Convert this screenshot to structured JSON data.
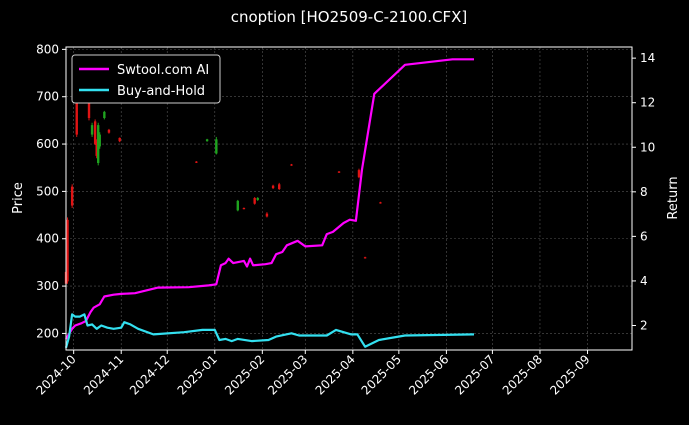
{
  "chart_data": {
    "type": "line",
    "title": "cnoption [HO2509-C-2100.CFX]",
    "ylabel_left": "Price",
    "ylabel_right": "Return",
    "ylim_left": [
      165,
      805
    ],
    "ylim_right": [
      0.9,
      14.5
    ],
    "yticks_left": [
      200,
      300,
      400,
      500,
      600,
      700,
      800
    ],
    "yticks_right": [
      2,
      4,
      6,
      8,
      10,
      12,
      14
    ],
    "xlim": [
      "2024-09-26",
      "2025-09-30"
    ],
    "xticks": [
      {
        "date": "2024-10-01",
        "label": "2024-10"
      },
      {
        "date": "2024-11-01",
        "label": "2024-11"
      },
      {
        "date": "2024-12-01",
        "label": "2024-12"
      },
      {
        "date": "2025-01-01",
        "label": "2025-01"
      },
      {
        "date": "2025-02-01",
        "label": "2025-02"
      },
      {
        "date": "2025-03-01",
        "label": "2025-03"
      },
      {
        "date": "2025-04-01",
        "label": "2025-04"
      },
      {
        "date": "2025-05-01",
        "label": "2025-05"
      },
      {
        "date": "2025-06-01",
        "label": "2025-06"
      },
      {
        "date": "2025-07-01",
        "label": "2025-07"
      },
      {
        "date": "2025-08-01",
        "label": "2025-08"
      },
      {
        "date": "2025-09-01",
        "label": "2025-09"
      }
    ],
    "grid": true,
    "legend_position": "top-left",
    "colors": {
      "up": "#1fa31f",
      "down": "#e01414",
      "grid": "#555555",
      "axis": "#ffffff"
    },
    "series": [
      {
        "name": "Swtool.com AI",
        "axis": "right",
        "color": "#ff00ff",
        "points": [
          [
            "2024-09-26",
            1.4
          ],
          [
            "2024-09-30",
            1.85
          ],
          [
            "2024-10-02",
            2.0
          ],
          [
            "2024-10-06",
            2.1
          ],
          [
            "2024-10-09",
            2.2
          ],
          [
            "2024-10-12",
            2.6
          ],
          [
            "2024-10-14",
            2.8
          ],
          [
            "2024-10-18",
            2.95
          ],
          [
            "2024-10-21",
            3.3
          ],
          [
            "2024-10-27",
            3.38
          ],
          [
            "2024-11-01",
            3.42
          ],
          [
            "2024-11-10",
            3.45
          ],
          [
            "2024-11-25",
            3.7
          ],
          [
            "2024-12-15",
            3.72
          ],
          [
            "2024-12-28",
            3.8
          ],
          [
            "2025-01-02",
            3.85
          ],
          [
            "2025-01-05",
            4.7
          ],
          [
            "2025-01-08",
            4.8
          ],
          [
            "2025-01-10",
            5.0
          ],
          [
            "2025-01-13",
            4.8
          ],
          [
            "2025-01-20",
            4.9
          ],
          [
            "2025-01-22",
            4.65
          ],
          [
            "2025-01-24",
            5.0
          ],
          [
            "2025-01-26",
            4.7
          ],
          [
            "2025-02-03",
            4.75
          ],
          [
            "2025-02-07",
            4.8
          ],
          [
            "2025-02-10",
            5.2
          ],
          [
            "2025-02-14",
            5.3
          ],
          [
            "2025-02-17",
            5.6
          ],
          [
            "2025-02-24",
            5.8
          ],
          [
            "2025-03-01",
            5.55
          ],
          [
            "2025-03-12",
            5.6
          ],
          [
            "2025-03-15",
            6.1
          ],
          [
            "2025-03-19",
            6.2
          ],
          [
            "2025-03-26",
            6.6
          ],
          [
            "2025-03-30",
            6.75
          ],
          [
            "2025-04-03",
            6.7
          ],
          [
            "2025-04-07",
            9.0
          ],
          [
            "2025-04-15",
            12.4
          ],
          [
            "2025-05-05",
            13.7
          ],
          [
            "2025-06-05",
            13.95
          ],
          [
            "2025-06-19",
            13.95
          ]
        ]
      },
      {
        "name": "Buy-and-Hold",
        "axis": "right",
        "color": "#33e0f0",
        "points": [
          [
            "2024-09-26",
            1.0
          ],
          [
            "2024-09-28",
            1.5
          ],
          [
            "2024-09-30",
            2.5
          ],
          [
            "2024-10-02",
            2.4
          ],
          [
            "2024-10-05",
            2.4
          ],
          [
            "2024-10-08",
            2.5
          ],
          [
            "2024-10-10",
            2.0
          ],
          [
            "2024-10-13",
            2.05
          ],
          [
            "2024-10-16",
            1.85
          ],
          [
            "2024-10-19",
            2.0
          ],
          [
            "2024-10-23",
            1.9
          ],
          [
            "2024-10-27",
            1.85
          ],
          [
            "2024-11-01",
            1.9
          ],
          [
            "2024-11-03",
            2.15
          ],
          [
            "2024-11-07",
            2.05
          ],
          [
            "2024-11-12",
            1.85
          ],
          [
            "2024-11-22",
            1.6
          ],
          [
            "2024-12-12",
            1.7
          ],
          [
            "2024-12-24",
            1.8
          ],
          [
            "2025-01-01",
            1.8
          ],
          [
            "2025-01-04",
            1.35
          ],
          [
            "2025-01-08",
            1.4
          ],
          [
            "2025-01-12",
            1.3
          ],
          [
            "2025-01-16",
            1.4
          ],
          [
            "2025-01-25",
            1.3
          ],
          [
            "2025-02-05",
            1.35
          ],
          [
            "2025-02-10",
            1.5
          ],
          [
            "2025-02-20",
            1.65
          ],
          [
            "2025-02-25",
            1.55
          ],
          [
            "2025-03-15",
            1.55
          ],
          [
            "2025-03-21",
            1.8
          ],
          [
            "2025-03-31",
            1.6
          ],
          [
            "2025-04-04",
            1.6
          ],
          [
            "2025-04-09",
            1.05
          ],
          [
            "2025-04-18",
            1.35
          ],
          [
            "2025-05-05",
            1.55
          ],
          [
            "2025-06-19",
            1.6
          ]
        ]
      }
    ],
    "candles": [
      {
        "date": "2024-09-26",
        "open": 330,
        "close": 305,
        "high": 340,
        "low": 300
      },
      {
        "date": "2024-09-27",
        "open": 440,
        "close": 310,
        "high": 445,
        "low": 305
      },
      {
        "date": "2024-09-30",
        "open": 510,
        "close": 470,
        "high": 515,
        "low": 465
      },
      {
        "date": "2024-10-03",
        "open": 720,
        "close": 620,
        "high": 735,
        "low": 615
      },
      {
        "date": "2024-10-08",
        "open": 712,
        "close": 706,
        "high": 715,
        "low": 703
      },
      {
        "date": "2024-10-09",
        "open": 740,
        "close": 730,
        "high": 745,
        "low": 725
      },
      {
        "date": "2024-10-11",
        "open": 690,
        "close": 655,
        "high": 695,
        "low": 650
      },
      {
        "date": "2024-10-13",
        "open": 620,
        "close": 640,
        "high": 645,
        "low": 615
      },
      {
        "date": "2024-10-15",
        "open": 648,
        "close": 600,
        "high": 652,
        "low": 598
      },
      {
        "date": "2024-10-16",
        "open": 605,
        "close": 575,
        "high": 610,
        "low": 570
      },
      {
        "date": "2024-10-17",
        "open": 560,
        "close": 640,
        "high": 645,
        "low": 555
      },
      {
        "date": "2024-10-18",
        "open": 595,
        "close": 620,
        "high": 625,
        "low": 590
      },
      {
        "date": "2024-10-21",
        "open": 655,
        "close": 668,
        "high": 670,
        "low": 652
      },
      {
        "date": "2024-10-24",
        "open": 630,
        "close": 624,
        "high": 632,
        "low": 622
      },
      {
        "date": "2024-10-31",
        "open": 613,
        "close": 606,
        "high": 614,
        "low": 604
      },
      {
        "date": "2024-12-20",
        "open": 563,
        "close": 561,
        "high": 564,
        "low": 560
      },
      {
        "date": "2024-12-27",
        "open": 606,
        "close": 610,
        "high": 611,
        "low": 605
      },
      {
        "date": "2025-01-02",
        "open": 580,
        "close": 610,
        "high": 615,
        "low": 578
      },
      {
        "date": "2025-01-16",
        "open": 460,
        "close": 480,
        "high": 482,
        "low": 458
      },
      {
        "date": "2025-01-20",
        "open": 465,
        "close": 463,
        "high": 466,
        "low": 462
      },
      {
        "date": "2025-01-27",
        "open": 486,
        "close": 474,
        "high": 488,
        "low": 472
      },
      {
        "date": "2025-01-29",
        "open": 482,
        "close": 486,
        "high": 488,
        "low": 480
      },
      {
        "date": "2025-02-04",
        "open": 453,
        "close": 447,
        "high": 456,
        "low": 445
      },
      {
        "date": "2025-02-08",
        "open": 512,
        "close": 507,
        "high": 514,
        "low": 505
      },
      {
        "date": "2025-02-12",
        "open": 515,
        "close": 505,
        "high": 518,
        "low": 503
      },
      {
        "date": "2025-02-20",
        "open": 557,
        "close": 555,
        "high": 558,
        "low": 554
      },
      {
        "date": "2025-03-23",
        "open": 542,
        "close": 540,
        "high": 543,
        "low": 539
      },
      {
        "date": "2025-04-05",
        "open": 545,
        "close": 530,
        "high": 548,
        "low": 528
      },
      {
        "date": "2025-04-09",
        "open": 361,
        "close": 359,
        "high": 362,
        "low": 358
      },
      {
        "date": "2025-04-19",
        "open": 477,
        "close": 475,
        "high": 478,
        "low": 474
      }
    ]
  }
}
